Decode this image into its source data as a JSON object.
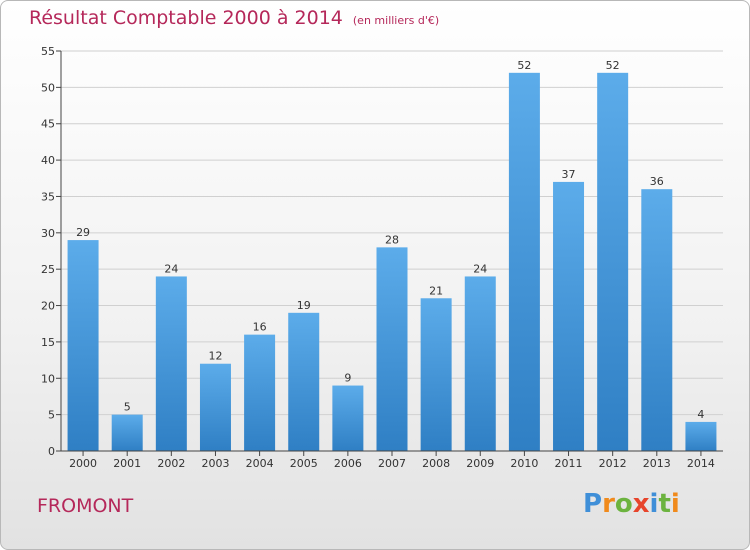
{
  "title": "Résultat Comptable 2000 à 2014",
  "unit": "(en milliers d'€)",
  "commune": "FROMONT",
  "logo": {
    "text": "Proxiti",
    "letters": [
      "P",
      "r",
      "o",
      "x",
      "i",
      "t",
      "i"
    ]
  },
  "colors": {
    "title": "#b5285a",
    "bar_light": "#5cacea",
    "bar_dark": "#2f7fc4",
    "grid": "#d0d0d0",
    "axis": "#444444"
  },
  "chart_data": {
    "type": "bar",
    "categories": [
      "2000",
      "2001",
      "2002",
      "2003",
      "2004",
      "2005",
      "2006",
      "2007",
      "2008",
      "2009",
      "2010",
      "2011",
      "2012",
      "2013",
      "2014"
    ],
    "values": [
      29,
      5,
      24,
      12,
      16,
      19,
      9,
      28,
      21,
      24,
      52,
      37,
      52,
      36,
      4
    ],
    "ylim": [
      0,
      55
    ],
    "yticks": [
      0,
      5,
      10,
      15,
      20,
      25,
      30,
      35,
      40,
      45,
      50,
      55
    ],
    "grid": true,
    "data_labels": true
  }
}
